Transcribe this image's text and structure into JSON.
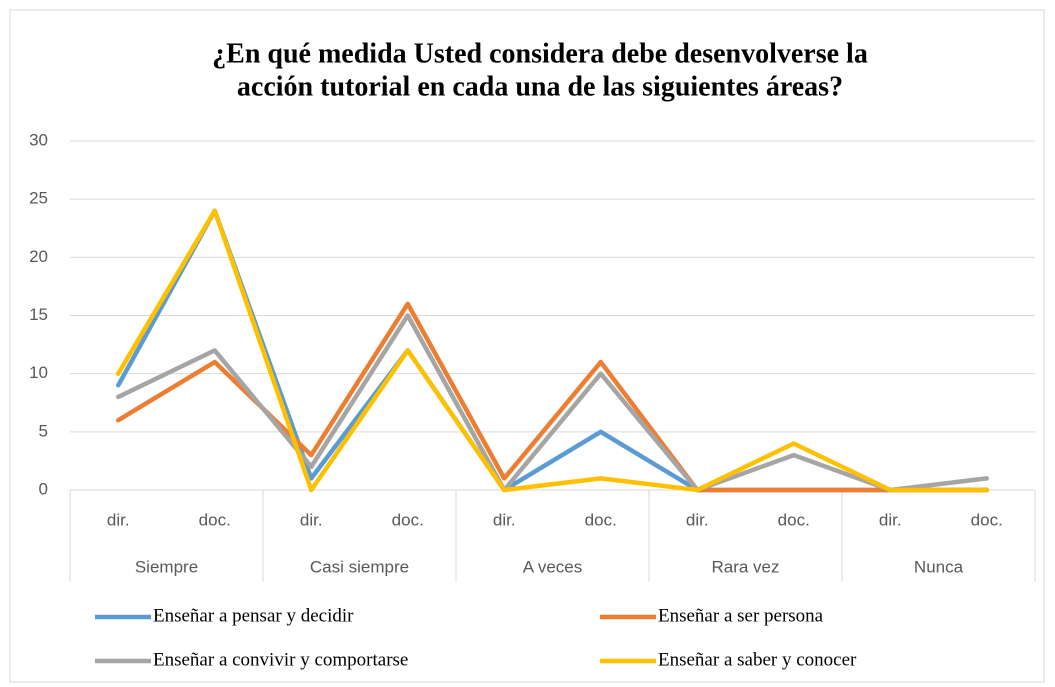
{
  "chart_data": {
    "type": "line",
    "title": [
      "¿En qué medida Usted considera debe desenvolverse la",
      "acción tutorial en cada una de las siguientes áreas?"
    ],
    "categories": [
      "dir.",
      "doc.",
      "dir.",
      "doc.",
      "dir.",
      "doc.",
      "dir.",
      "doc.",
      "dir.",
      "doc."
    ],
    "groups": [
      "Siempre",
      "Casi siempre",
      "A veces",
      "Rara vez",
      "Nunca"
    ],
    "series": [
      {
        "name": "Enseñar a pensar y decidir",
        "color": "#5b9bd5",
        "values": [
          9,
          24,
          1,
          12,
          0,
          5,
          0,
          0,
          0,
          0
        ]
      },
      {
        "name": "Enseñar a ser persona",
        "color": "#ed7d31",
        "values": [
          6,
          11,
          3,
          16,
          1,
          11,
          0,
          0,
          0,
          0
        ]
      },
      {
        "name": "Enseñar a convivir y comportarse",
        "color": "#a5a5a5",
        "values": [
          8,
          12,
          2,
          15,
          0,
          10,
          0,
          3,
          0,
          1
        ]
      },
      {
        "name": "Enseñar a saber y conocer",
        "color": "#ffc000",
        "values": [
          10,
          24,
          0,
          12,
          0,
          1,
          0,
          4,
          0,
          0
        ]
      }
    ],
    "ylim": [
      0,
      30
    ],
    "yticks": [
      0,
      5,
      10,
      15,
      20,
      25,
      30
    ],
    "grid": true,
    "legend": "bottom"
  }
}
